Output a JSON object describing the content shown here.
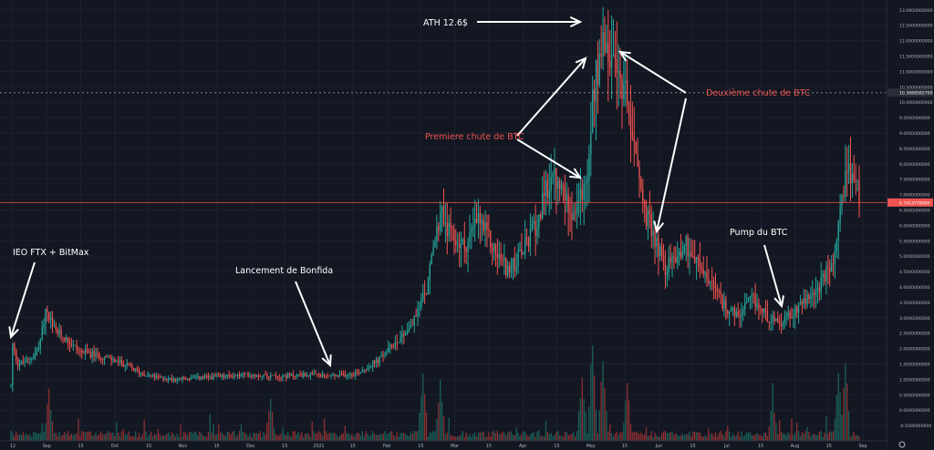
{
  "chart_data": {
    "type": "candlestick",
    "title": "",
    "xlabel": "",
    "ylabel": "",
    "ylim": [
      -1,
      13.2
    ],
    "y_ticks": [
      "13.0000000000",
      "12.5000000000",
      "12.0000000000",
      "11.5000000000",
      "11.0000000000",
      "10.5000000000",
      "10.3088582700",
      "10.0000000000",
      "9.5000000000",
      "9.0000000000",
      "8.5000000000",
      "8.0000000000",
      "7.5000000000",
      "7.0000000000",
      "6.7413778900",
      "6.5000000000",
      "6.0000000000",
      "5.5000000000",
      "5.0000000000",
      "4.5000000000",
      "4.0000000000",
      "3.5000000000",
      "3.0000000000",
      "2.5000000000",
      "2.0000000000",
      "1.5000000000",
      "1.0000000000",
      "0.5000000000",
      "0.0000000000",
      "-0.5000000000"
    ],
    "x_ticks": [
      "12",
      "Sep",
      "13",
      "Oct",
      "15",
      "Nov",
      "15",
      "Dec",
      "15",
      "2021",
      "15",
      "Feb",
      "15",
      "Mar",
      "15",
      "Apr",
      "15",
      "May",
      "15",
      "Jun",
      "15",
      "Jul",
      "15",
      "Aug",
      "15",
      "Sep"
    ],
    "price_lines": [
      {
        "value": 10.30885827,
        "label": "10.3088582700",
        "color": "#b2b5be"
      },
      {
        "value": 6.74137789,
        "label": "6.7413778900",
        "color": "#ef5350"
      }
    ],
    "price_anchors": [
      [
        0,
        0.8
      ],
      [
        1,
        2.1
      ],
      [
        4,
        1.5
      ],
      [
        10,
        1.6
      ],
      [
        16,
        2.0
      ],
      [
        20,
        3.2
      ],
      [
        25,
        2.6
      ],
      [
        32,
        2.3
      ],
      [
        40,
        1.9
      ],
      [
        55,
        1.7
      ],
      [
        65,
        1.5
      ],
      [
        75,
        1.2
      ],
      [
        85,
        1.05
      ],
      [
        95,
        1.0
      ],
      [
        110,
        1.05
      ],
      [
        125,
        1.1
      ],
      [
        140,
        1.15
      ],
      [
        155,
        1.1
      ],
      [
        170,
        1.15
      ],
      [
        185,
        1.1
      ],
      [
        200,
        1.2
      ],
      [
        212,
        1.6
      ],
      [
        222,
        2.2
      ],
      [
        232,
        2.8
      ],
      [
        240,
        3.9
      ],
      [
        248,
        6.5
      ],
      [
        254,
        5.6
      ],
      [
        262,
        5.3
      ],
      [
        270,
        6.2
      ],
      [
        280,
        5.1
      ],
      [
        288,
        4.5
      ],
      [
        296,
        5.2
      ],
      [
        304,
        6.1
      ],
      [
        312,
        7.6
      ],
      [
        318,
        7.1
      ],
      [
        326,
        6.4
      ],
      [
        332,
        7.2
      ],
      [
        336,
        10.2
      ],
      [
        342,
        12.2
      ],
      [
        348,
        11.0
      ],
      [
        354,
        10.6
      ],
      [
        360,
        8.7
      ],
      [
        366,
        6.4
      ],
      [
        372,
        5.6
      ],
      [
        378,
        4.6
      ],
      [
        384,
        5.0
      ],
      [
        390,
        5.4
      ],
      [
        396,
        4.8
      ],
      [
        404,
        4.1
      ],
      [
        412,
        3.4
      ],
      [
        420,
        3.0
      ],
      [
        428,
        3.6
      ],
      [
        436,
        3.1
      ],
      [
        444,
        2.7
      ],
      [
        452,
        3.2
      ],
      [
        460,
        3.6
      ],
      [
        468,
        4.1
      ],
      [
        476,
        4.9
      ],
      [
        482,
        7.6
      ],
      [
        486,
        7.7
      ],
      [
        490,
        6.9
      ]
    ],
    "volume_bursts": [
      [
        22,
        1.8
      ],
      [
        150,
        1.5
      ],
      [
        238,
        2.6
      ],
      [
        248,
        2.2
      ],
      [
        330,
        2.4
      ],
      [
        336,
        3.6
      ],
      [
        342,
        3.1
      ],
      [
        356,
        2.0
      ],
      [
        440,
        1.5
      ],
      [
        478,
        2.5
      ],
      [
        482,
        3.0
      ]
    ],
    "annotations": [
      {
        "id": "ath",
        "text": "ATH 12.6$",
        "color": "#ffffff"
      },
      {
        "id": "premiere",
        "text": "Premiere chute de BTC",
        "color": "#ef5350"
      },
      {
        "id": "deuxieme",
        "text": "Deuxième chute de BTC",
        "color": "#ef5350"
      },
      {
        "id": "ieo",
        "text": "IEO FTX + BitMax",
        "color": "#ffffff"
      },
      {
        "id": "bonfida",
        "text": "Lancement de Bonfida",
        "color": "#ffffff"
      },
      {
        "id": "pump",
        "text": "Pump du BTC",
        "color": "#ffffff"
      }
    ],
    "colors": {
      "background": "#131722",
      "up": "#26a69a",
      "down": "#ef5350",
      "grid": "#1c2030",
      "axis_text": "#b2b5be",
      "vol_up": "#1b5e57",
      "vol_down": "#8a2f33"
    },
    "grid": true
  }
}
